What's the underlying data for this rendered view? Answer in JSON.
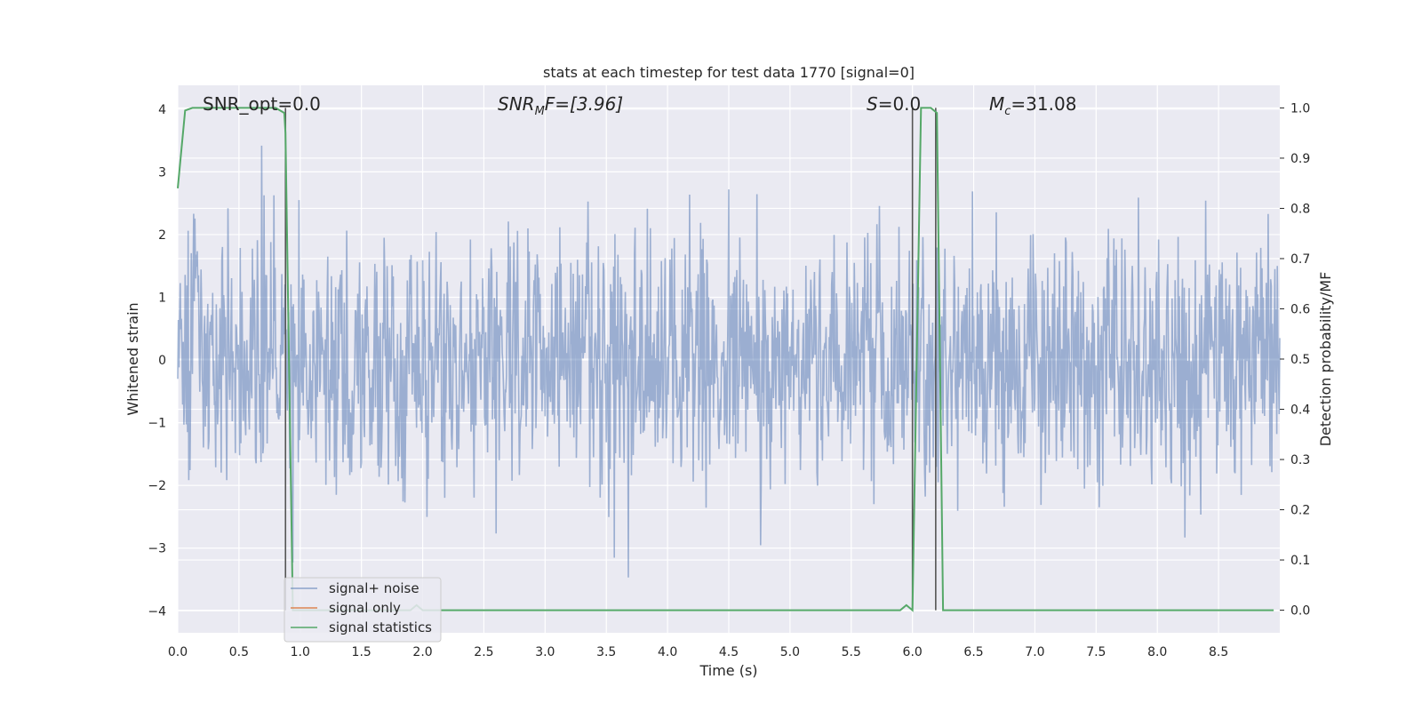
{
  "chart_data": {
    "type": "line",
    "title": "stats at each timestep for test data 1770 [signal=0]",
    "xlabel": "Time (s)",
    "ylabel_left": "Whitened strain",
    "ylabel_right": "Detection probability/MF",
    "xlim": [
      0.0,
      9.0
    ],
    "ylim_left": [
      -4.35,
      4.38
    ],
    "ylim_right": [
      -0.045,
      1.045
    ],
    "xticks": [
      "0.0",
      "0.5",
      "1.0",
      "1.5",
      "2.0",
      "2.5",
      "3.0",
      "3.5",
      "4.0",
      "4.5",
      "5.0",
      "5.5",
      "6.0",
      "6.5",
      "7.0",
      "7.5",
      "8.0",
      "8.5"
    ],
    "yticks_left": [
      "−4",
      "−3",
      "−2",
      "−1",
      "0",
      "1",
      "2",
      "3",
      "4"
    ],
    "yticks_right": [
      "0.0",
      "0.1",
      "0.2",
      "0.3",
      "0.4",
      "0.5",
      "0.6",
      "0.7",
      "0.8",
      "0.9",
      "1.0"
    ],
    "grid": true,
    "legend_position": "lower-left",
    "annotations": {
      "snr_opt": "SNR_opt=0.0",
      "snr_mf_main": "SNR",
      "snr_mf_sub": "M",
      "snr_mf_rest": "F=[3.96]",
      "s_main": "S",
      "s_rest": "=0.0",
      "mc_main": "M",
      "mc_sub": "c",
      "mc_rest": "=31.08"
    },
    "vertical_markers": [
      0.88,
      6.0,
      6.19
    ],
    "series": [
      {
        "name": "signal+ noise",
        "color": "#4c72b0",
        "opacity": 0.5,
        "description_envelope": {
          "typical_amplitude": 1.6,
          "samples_per_second": 200
        }
      },
      {
        "name": "signal only",
        "color": "#dd8452",
        "x": [
          0.0,
          9.0
        ],
        "y": [
          0.0,
          0.0
        ]
      },
      {
        "name": "signal statistics",
        "color": "#55a868",
        "axis": "right",
        "x": [
          0.0,
          0.06,
          0.12,
          0.2,
          0.3,
          0.4,
          0.5,
          0.6,
          0.7,
          0.8,
          0.87,
          0.88,
          0.94,
          1.0,
          1.2,
          1.5,
          1.9,
          1.95,
          2.0,
          2.5,
          3.0,
          3.5,
          4.0,
          4.5,
          5.0,
          5.5,
          5.9,
          5.95,
          6.0,
          6.07,
          6.15,
          6.2,
          6.25,
          6.3,
          6.5,
          7.0,
          7.5,
          8.0,
          8.5,
          8.95
        ],
        "y": [
          0.84,
          0.995,
          1.0,
          1.0,
          1.0,
          1.0,
          1.0,
          1.0,
          1.0,
          1.0,
          0.99,
          0.95,
          0.0,
          0.0,
          0.0,
          0.0,
          0.0,
          0.01,
          0.0,
          0.0,
          0.0,
          0.0,
          0.0,
          0.0,
          0.0,
          0.0,
          0.0,
          0.01,
          0.0,
          1.0,
          1.0,
          0.99,
          0.0,
          0.0,
          0.0,
          0.0,
          0.0,
          0.0,
          0.0,
          0.0
        ]
      }
    ]
  }
}
